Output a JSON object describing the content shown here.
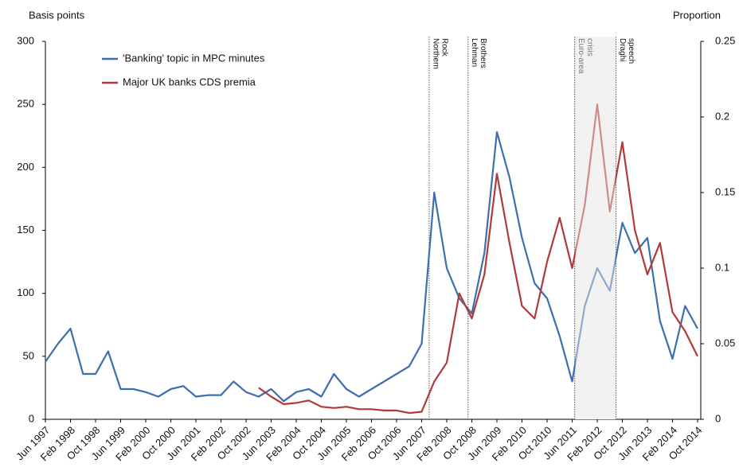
{
  "chart_data": {
    "type": "line",
    "y_label": "Basis points",
    "y2_label": "Proportion",
    "categories": [
      "Jun 1997",
      null,
      "Feb 1998",
      null,
      "Oct 1998",
      null,
      "Jun 1999",
      null,
      "Feb 2000",
      null,
      "Oct 2000",
      null,
      "Jun 2001",
      null,
      "Feb 2002",
      null,
      "Oct 2002",
      null,
      "Jun 2003",
      null,
      "Feb 2004",
      null,
      "Oct 2004",
      null,
      "Jun 2005",
      null,
      "Feb 2006",
      null,
      "Oct 2006",
      null,
      "Jun 2007",
      null,
      "Feb 2008",
      null,
      "Oct 2008",
      null,
      "Jun 2009",
      null,
      "Feb 2010",
      null,
      "Oct 2010",
      null,
      "Jun 2011",
      null,
      "Feb 2012",
      null,
      "Oct 2012",
      null,
      "Jun 2013",
      null,
      "Feb 2014",
      null,
      "Oct 2014"
    ],
    "series": [
      {
        "name": "'Banking' topic in MPC minutes",
        "color": "#3e6eb0",
        "axis": "y2",
        "values": [
          0.038,
          0.05,
          0.06,
          0.03,
          0.03,
          0.045,
          0.02,
          0.02,
          0.018,
          0.015,
          0.02,
          0.022,
          0.015,
          0.016,
          0.016,
          0.025,
          0.018,
          0.015,
          0.02,
          0.012,
          0.018,
          0.02,
          0.015,
          0.03,
          0.02,
          0.015,
          0.02,
          0.025,
          0.03,
          0.035,
          0.05,
          0.15,
          0.1,
          0.08,
          0.07,
          0.11,
          0.19,
          0.16,
          0.12,
          0.09,
          0.08,
          0.055,
          0.025,
          0.075,
          0.1,
          0.085,
          0.13,
          0.11,
          0.12,
          0.065,
          0.04,
          0.075,
          0.06
        ]
      },
      {
        "name": "Major UK banks CDS premia",
        "color": "#b03a3a",
        "values": [
          null,
          null,
          null,
          null,
          null,
          null,
          null,
          null,
          null,
          null,
          null,
          null,
          null,
          null,
          null,
          null,
          null,
          25,
          18,
          12,
          13,
          15,
          10,
          9,
          10,
          8,
          8,
          7,
          7,
          5,
          6,
          30,
          45,
          100,
          80,
          115,
          195,
          140,
          90,
          80,
          125,
          160,
          120,
          170,
          250,
          165,
          220,
          150,
          115,
          140,
          85,
          70,
          50
        ]
      }
    ],
    "ylim": [
      0,
      300
    ],
    "yticks": [
      0,
      50,
      100,
      150,
      200,
      250,
      300
    ],
    "y2lim": [
      0,
      0.25
    ],
    "y2ticks": [
      0,
      0.05,
      0.1,
      0.15,
      0.2,
      0.25
    ],
    "legend": "top-left",
    "events": [
      {
        "lines": [
          "Northern",
          "Rock"
        ],
        "x": 30.6
      },
      {
        "lines": [
          "Lehman",
          "Brothers"
        ],
        "x": 33.7
      },
      {
        "lines": [
          "Euro-area",
          "crisis"
        ],
        "x": 42.2,
        "shade_to": 45.5
      },
      {
        "lines": [
          "Draghi",
          "speech"
        ],
        "x": 45.5
      }
    ]
  }
}
